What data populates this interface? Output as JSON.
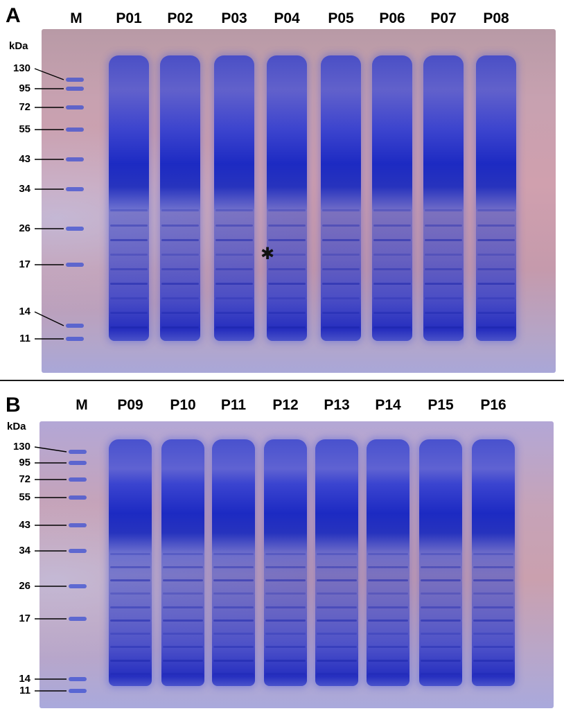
{
  "panel_a": {
    "letter": "A",
    "marker_label": "M",
    "lanes": [
      "P01",
      "P02",
      "P03",
      "P04",
      "P05",
      "P06",
      "P07",
      "P08"
    ],
    "unit": "kDa",
    "mw_markers": [
      "130",
      "95",
      "72",
      "55",
      "43",
      "34",
      "26",
      "17",
      "14",
      "11"
    ],
    "annotation": "✱"
  },
  "panel_b": {
    "letter": "B",
    "marker_label": "M",
    "lanes": [
      "P09",
      "P10",
      "P11",
      "P12",
      "P13",
      "P14",
      "P15",
      "P16"
    ],
    "unit": "kDa",
    "mw_markers": [
      "130",
      "95",
      "72",
      "55",
      "43",
      "34",
      "26",
      "17",
      "14",
      "11"
    ]
  },
  "colors": {
    "stain": "#2c3fd6",
    "stain_dark": "#1c2bb8",
    "gel_background": "#c9a3b2",
    "ladder_band": "#4a5fd8",
    "line": "#000000"
  },
  "icons": {
    "asterisk": "asterisk-icon"
  }
}
